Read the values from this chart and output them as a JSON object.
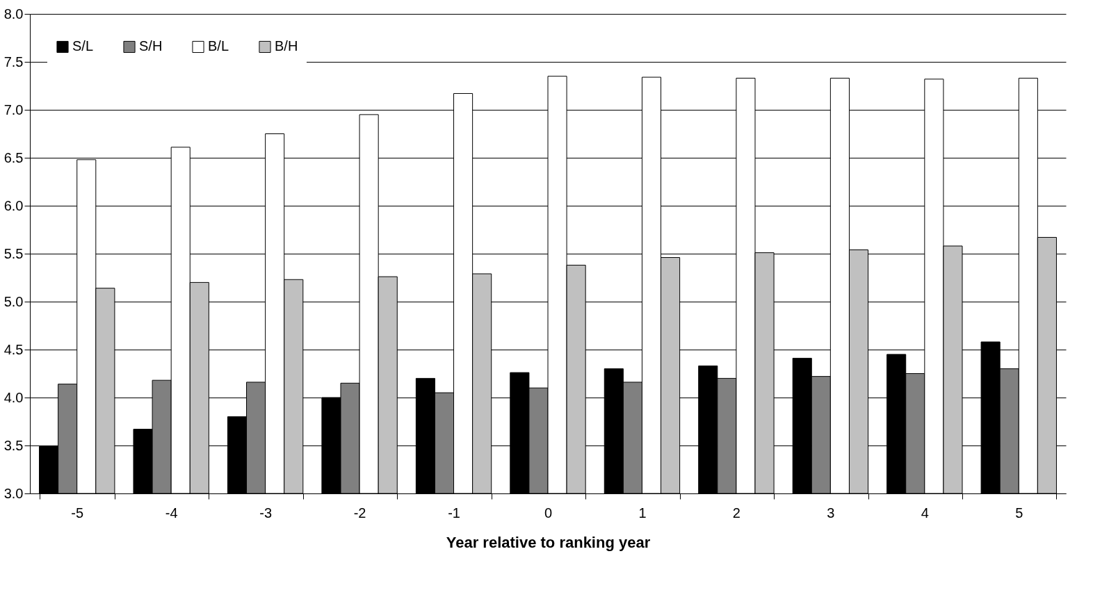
{
  "chart_data": {
    "type": "bar",
    "xlabel": "Year relative to ranking year",
    "categories": [
      "-5",
      "-4",
      "-3",
      "-2",
      "-1",
      "0",
      "1",
      "2",
      "3",
      "4",
      "5"
    ],
    "series": [
      {
        "name": "S/L",
        "color": "#000000",
        "values": [
          3.49,
          3.67,
          3.8,
          4.0,
          4.2,
          4.26,
          4.3,
          4.33,
          4.41,
          4.45,
          4.58
        ]
      },
      {
        "name": "S/H",
        "color": "#808080",
        "values": [
          4.14,
          4.18,
          4.16,
          4.15,
          4.05,
          4.1,
          4.16,
          4.2,
          4.22,
          4.25,
          4.3
        ]
      },
      {
        "name": "B/L",
        "color": "#ffffff",
        "values": [
          6.48,
          6.61,
          6.75,
          6.95,
          7.17,
          7.35,
          7.34,
          7.33,
          7.33,
          7.32,
          7.33
        ]
      },
      {
        "name": "B/H",
        "color": "#c0c0c0",
        "values": [
          5.14,
          5.2,
          5.23,
          5.26,
          5.29,
          5.38,
          5.46,
          5.51,
          5.54,
          5.58,
          5.67
        ]
      }
    ],
    "ylim": [
      3.0,
      8.0
    ],
    "yticks": [
      {
        "value": 3,
        "label": "3.0"
      },
      3.5,
      {
        "value": 4,
        "label": "4.0"
      },
      4.5,
      {
        "value": 5,
        "label": "5.0"
      },
      5.5,
      {
        "value": 6,
        "label": "6.0"
      },
      6.5,
      {
        "value": 7,
        "label": "7.0"
      },
      7.5,
      {
        "value": 8,
        "label": "8.0"
      }
    ],
    "grid": "y",
    "legend": "top left"
  }
}
